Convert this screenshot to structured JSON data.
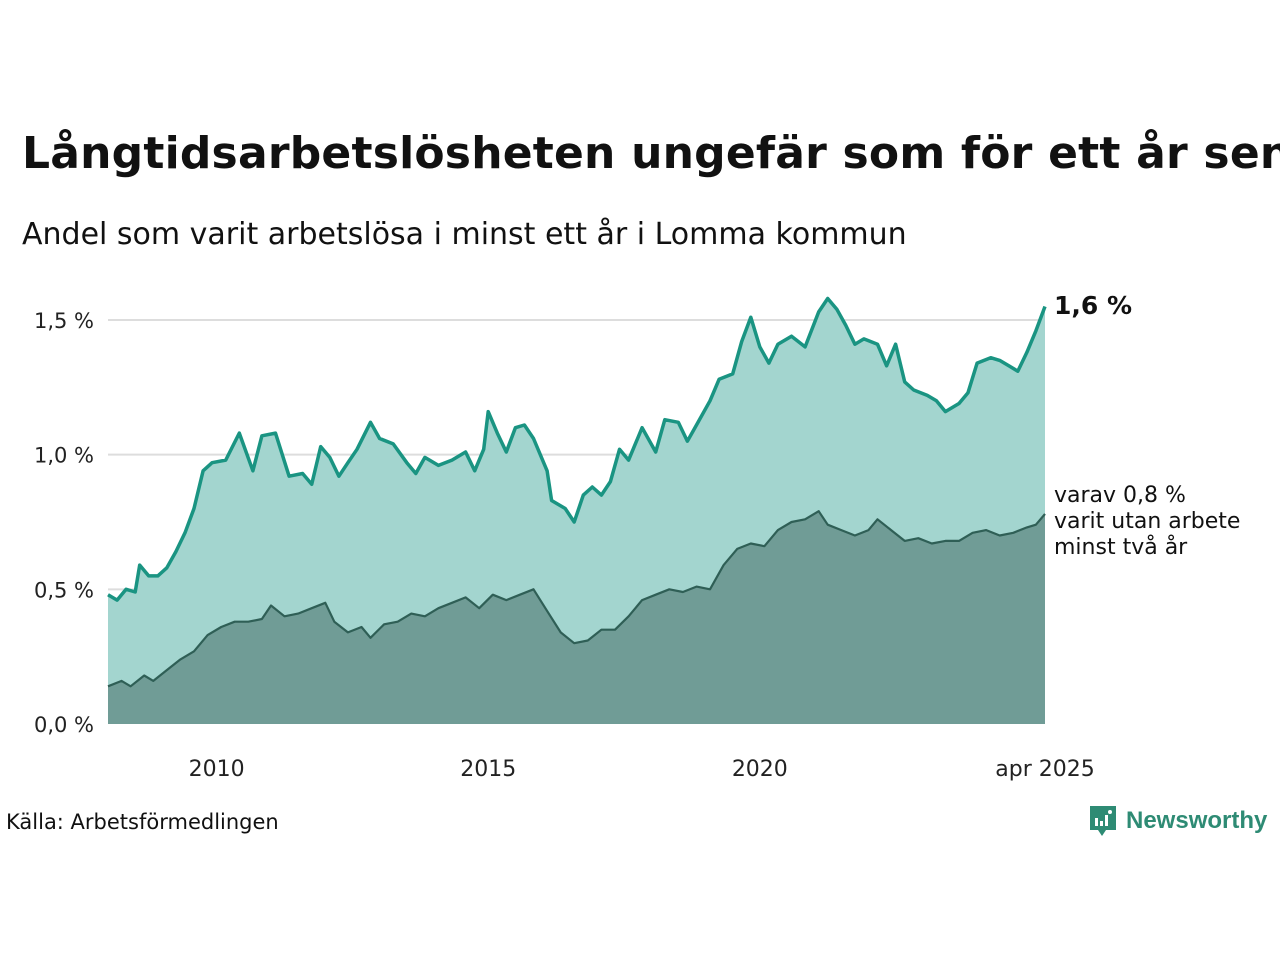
{
  "title": "Långtidsarbetslösheten ungefär som för ett år sen",
  "subtitle": "Andel som varit arbetslösa i minst ett år i Lomma kommun",
  "source": "Källa: Arbetsförmedlingen",
  "brand": {
    "name": "Newsworthy",
    "icon": "newsworthy-logo-icon"
  },
  "colors": {
    "total_line": "#1a9482",
    "total_fill": "#a3d5cf",
    "twoyear_line": "#2f5f56",
    "twoyear_fill": "#709c96",
    "grid": "#dddddd"
  },
  "chart_data": {
    "type": "area",
    "x_start": "2008-01",
    "x_end": "2025-04",
    "xticks": [
      "2010",
      "2015",
      "2020",
      "apr 2025"
    ],
    "ytick_labels": [
      "0,0 %",
      "0,5 %",
      "1,0 %",
      "1,5 %"
    ],
    "ylim": [
      0,
      1.5
    ],
    "grid": true,
    "end_label_total": "1,6 %",
    "end_label_twoyear": [
      "varav 0,8 %",
      "varit utan arbete",
      "minst två år"
    ],
    "series": [
      {
        "key": "total",
        "points": [
          [
            "2008-01",
            0.48
          ],
          [
            "2008-03",
            0.46
          ],
          [
            "2008-05",
            0.5
          ],
          [
            "2008-07",
            0.49
          ],
          [
            "2008-08",
            0.59
          ],
          [
            "2008-10",
            0.55
          ],
          [
            "2008-12",
            0.55
          ],
          [
            "2009-02",
            0.58
          ],
          [
            "2009-04",
            0.64
          ],
          [
            "2009-06",
            0.71
          ],
          [
            "2009-08",
            0.8
          ],
          [
            "2009-10",
            0.94
          ],
          [
            "2009-12",
            0.97
          ],
          [
            "2010-03",
            0.98
          ],
          [
            "2010-06",
            1.08
          ],
          [
            "2010-09",
            0.94
          ],
          [
            "2010-11",
            1.07
          ],
          [
            "2011-02",
            1.08
          ],
          [
            "2011-05",
            0.92
          ],
          [
            "2011-08",
            0.93
          ],
          [
            "2011-10",
            0.89
          ],
          [
            "2011-12",
            1.03
          ],
          [
            "2012-02",
            0.99
          ],
          [
            "2012-04",
            0.92
          ],
          [
            "2012-06",
            0.97
          ],
          [
            "2012-08",
            1.02
          ],
          [
            "2012-11",
            1.12
          ],
          [
            "2013-01",
            1.06
          ],
          [
            "2013-04",
            1.04
          ],
          [
            "2013-07",
            0.97
          ],
          [
            "2013-09",
            0.93
          ],
          [
            "2013-11",
            0.99
          ],
          [
            "2014-02",
            0.96
          ],
          [
            "2014-05",
            0.98
          ],
          [
            "2014-08",
            1.01
          ],
          [
            "2014-10",
            0.94
          ],
          [
            "2014-12",
            1.02
          ],
          [
            "2015-01",
            1.16
          ],
          [
            "2015-03",
            1.08
          ],
          [
            "2015-05",
            1.01
          ],
          [
            "2015-07",
            1.1
          ],
          [
            "2015-09",
            1.11
          ],
          [
            "2015-11",
            1.06
          ],
          [
            "2016-02",
            0.94
          ],
          [
            "2016-03",
            0.83
          ],
          [
            "2016-06",
            0.8
          ],
          [
            "2016-08",
            0.75
          ],
          [
            "2016-10",
            0.85
          ],
          [
            "2016-12",
            0.88
          ],
          [
            "2017-02",
            0.85
          ],
          [
            "2017-04",
            0.9
          ],
          [
            "2017-06",
            1.02
          ],
          [
            "2017-08",
            0.98
          ],
          [
            "2017-11",
            1.1
          ],
          [
            "2018-02",
            1.01
          ],
          [
            "2018-04",
            1.13
          ],
          [
            "2018-07",
            1.12
          ],
          [
            "2018-09",
            1.05
          ],
          [
            "2018-11",
            1.11
          ],
          [
            "2019-02",
            1.2
          ],
          [
            "2019-04",
            1.28
          ],
          [
            "2019-07",
            1.3
          ],
          [
            "2019-09",
            1.42
          ],
          [
            "2019-11",
            1.51
          ],
          [
            "2020-01",
            1.4
          ],
          [
            "2020-03",
            1.34
          ],
          [
            "2020-05",
            1.41
          ],
          [
            "2020-08",
            1.44
          ],
          [
            "2020-11",
            1.4
          ],
          [
            "2021-02",
            1.53
          ],
          [
            "2021-04",
            1.58
          ],
          [
            "2021-06",
            1.54
          ],
          [
            "2021-08",
            1.48
          ],
          [
            "2021-10",
            1.41
          ],
          [
            "2021-12",
            1.43
          ],
          [
            "2022-03",
            1.41
          ],
          [
            "2022-05",
            1.33
          ],
          [
            "2022-07",
            1.41
          ],
          [
            "2022-09",
            1.27
          ],
          [
            "2022-11",
            1.24
          ],
          [
            "2023-02",
            1.22
          ],
          [
            "2023-04",
            1.2
          ],
          [
            "2023-06",
            1.16
          ],
          [
            "2023-09",
            1.19
          ],
          [
            "2023-11",
            1.23
          ],
          [
            "2024-01",
            1.34
          ],
          [
            "2024-04",
            1.36
          ],
          [
            "2024-06",
            1.35
          ],
          [
            "2024-08",
            1.33
          ],
          [
            "2024-10",
            1.31
          ],
          [
            "2024-12",
            1.38
          ],
          [
            "2025-02",
            1.46
          ],
          [
            "2025-04",
            1.55
          ]
        ]
      },
      {
        "key": "twoyear",
        "points": [
          [
            "2008-01",
            0.14
          ],
          [
            "2008-04",
            0.16
          ],
          [
            "2008-06",
            0.14
          ],
          [
            "2008-09",
            0.18
          ],
          [
            "2008-11",
            0.16
          ],
          [
            "2009-02",
            0.2
          ],
          [
            "2009-05",
            0.24
          ],
          [
            "2009-08",
            0.27
          ],
          [
            "2009-11",
            0.33
          ],
          [
            "2010-02",
            0.36
          ],
          [
            "2010-05",
            0.38
          ],
          [
            "2010-08",
            0.38
          ],
          [
            "2010-11",
            0.39
          ],
          [
            "2011-01",
            0.44
          ],
          [
            "2011-04",
            0.4
          ],
          [
            "2011-07",
            0.41
          ],
          [
            "2011-10",
            0.43
          ],
          [
            "2012-01",
            0.45
          ],
          [
            "2012-03",
            0.38
          ],
          [
            "2012-06",
            0.34
          ],
          [
            "2012-09",
            0.36
          ],
          [
            "2012-11",
            0.32
          ],
          [
            "2013-02",
            0.37
          ],
          [
            "2013-05",
            0.38
          ],
          [
            "2013-08",
            0.41
          ],
          [
            "2013-11",
            0.4
          ],
          [
            "2014-02",
            0.43
          ],
          [
            "2014-05",
            0.45
          ],
          [
            "2014-08",
            0.47
          ],
          [
            "2014-11",
            0.43
          ],
          [
            "2015-02",
            0.48
          ],
          [
            "2015-05",
            0.46
          ],
          [
            "2015-08",
            0.48
          ],
          [
            "2015-11",
            0.5
          ],
          [
            "2016-02",
            0.42
          ],
          [
            "2016-05",
            0.34
          ],
          [
            "2016-08",
            0.3
          ],
          [
            "2016-11",
            0.31
          ],
          [
            "2017-02",
            0.35
          ],
          [
            "2017-05",
            0.35
          ],
          [
            "2017-08",
            0.4
          ],
          [
            "2017-11",
            0.46
          ],
          [
            "2018-02",
            0.48
          ],
          [
            "2018-05",
            0.5
          ],
          [
            "2018-08",
            0.49
          ],
          [
            "2018-11",
            0.51
          ],
          [
            "2019-02",
            0.5
          ],
          [
            "2019-05",
            0.59
          ],
          [
            "2019-08",
            0.65
          ],
          [
            "2019-11",
            0.67
          ],
          [
            "2020-02",
            0.66
          ],
          [
            "2020-05",
            0.72
          ],
          [
            "2020-08",
            0.75
          ],
          [
            "2020-11",
            0.76
          ],
          [
            "2021-02",
            0.79
          ],
          [
            "2021-04",
            0.74
          ],
          [
            "2021-07",
            0.72
          ],
          [
            "2021-10",
            0.7
          ],
          [
            "2022-01",
            0.72
          ],
          [
            "2022-03",
            0.76
          ],
          [
            "2022-06",
            0.72
          ],
          [
            "2022-09",
            0.68
          ],
          [
            "2022-12",
            0.69
          ],
          [
            "2023-03",
            0.67
          ],
          [
            "2023-06",
            0.68
          ],
          [
            "2023-09",
            0.68
          ],
          [
            "2023-12",
            0.71
          ],
          [
            "2024-03",
            0.72
          ],
          [
            "2024-06",
            0.7
          ],
          [
            "2024-09",
            0.71
          ],
          [
            "2024-12",
            0.73
          ],
          [
            "2025-02",
            0.74
          ],
          [
            "2025-04",
            0.78
          ]
        ]
      }
    ]
  }
}
